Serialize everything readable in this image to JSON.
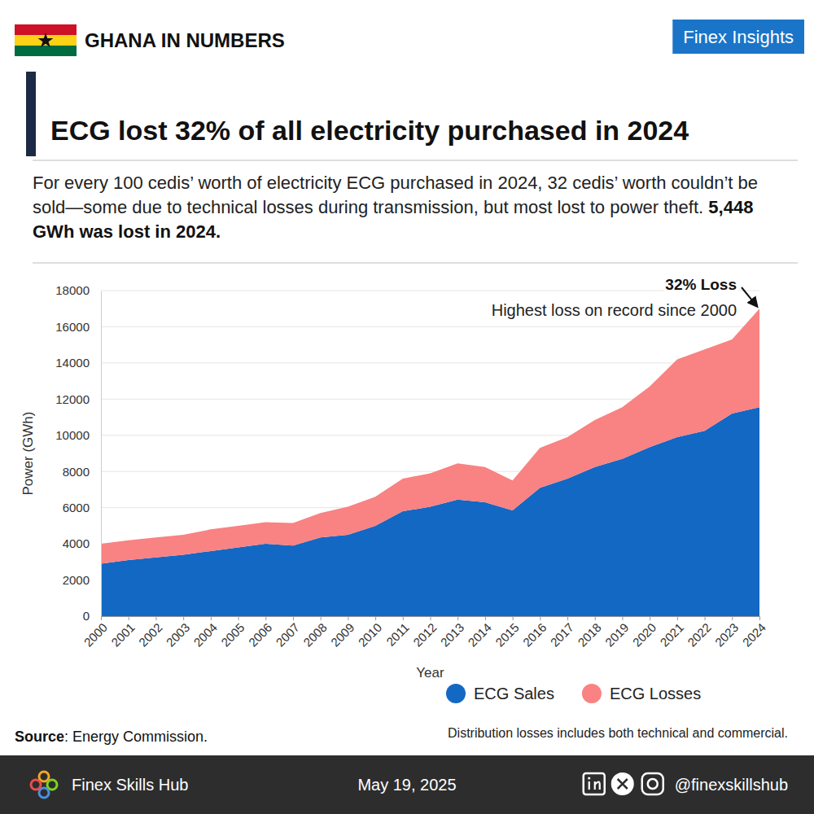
{
  "header": {
    "brand": "GHANA IN NUMBERS",
    "badge": "Finex Insights"
  },
  "chart_data": {
    "type": "area",
    "stacked": true,
    "title": "ECG lost 32% of all electricity purchased in 2024",
    "subtitle": [
      "For every 100 cedis’ worth of electricity ECG purchased in 2024, 32 cedis’ worth couldn’t be sold—some due to technical losses during transmission, but most lost to power theft.",
      "5,448 GWh was lost in 2024."
    ],
    "x_label": "Year",
    "y_label": "Power (GWh)",
    "x": [
      2000,
      2001,
      2002,
      2003,
      2004,
      2005,
      2006,
      2007,
      2008,
      2009,
      2010,
      2011,
      2012,
      2013,
      2014,
      2015,
      2016,
      2017,
      2018,
      2019,
      2020,
      2021,
      2022,
      2023,
      2024
    ],
    "xlim": [
      2000,
      2024
    ],
    "xticks": [
      2000,
      2001,
      2002,
      2003,
      2004,
      2005,
      2006,
      2007,
      2008,
      2009,
      2010,
      2011,
      2012,
      2013,
      2014,
      2015,
      2016,
      2017,
      2018,
      2019,
      2020,
      2021,
      2022,
      2023,
      2024
    ],
    "ylim": [
      0,
      18000
    ],
    "yticks": [
      0,
      2000,
      4000,
      6000,
      8000,
      10000,
      12000,
      14000,
      16000,
      18000
    ],
    "grid": true,
    "legend": "bottom",
    "series": [
      {
        "name": "ECG Sales",
        "color": "#1368c4",
        "values": [
          2900,
          3100,
          3250,
          3400,
          3600,
          3800,
          4000,
          3900,
          4350,
          4500,
          5000,
          5800,
          6050,
          6450,
          6300,
          5850,
          7100,
          7600,
          8250,
          8700,
          9350,
          9900,
          10250,
          11200,
          11550
        ]
      },
      {
        "name": "ECG Losses",
        "color": "#f98282",
        "values": [
          1100,
          1100,
          1100,
          1100,
          1200,
          1200,
          1200,
          1250,
          1350,
          1550,
          1600,
          1800,
          1850,
          2000,
          1950,
          1650,
          2200,
          2300,
          2600,
          2850,
          3350,
          4300,
          4500,
          4100,
          5448
        ]
      }
    ],
    "annotations": [
      {
        "x": 2024,
        "title": "32% Loss",
        "text": "Highest loss on record since 2000"
      }
    ],
    "source": [
      "Source",
      ": Energy Commission."
    ],
    "note": "Distribution losses includes both technical and commercial."
  },
  "footer": {
    "brand": "Finex Skills Hub",
    "date": "May 19, 2025",
    "handle": "@finexskillshub"
  }
}
